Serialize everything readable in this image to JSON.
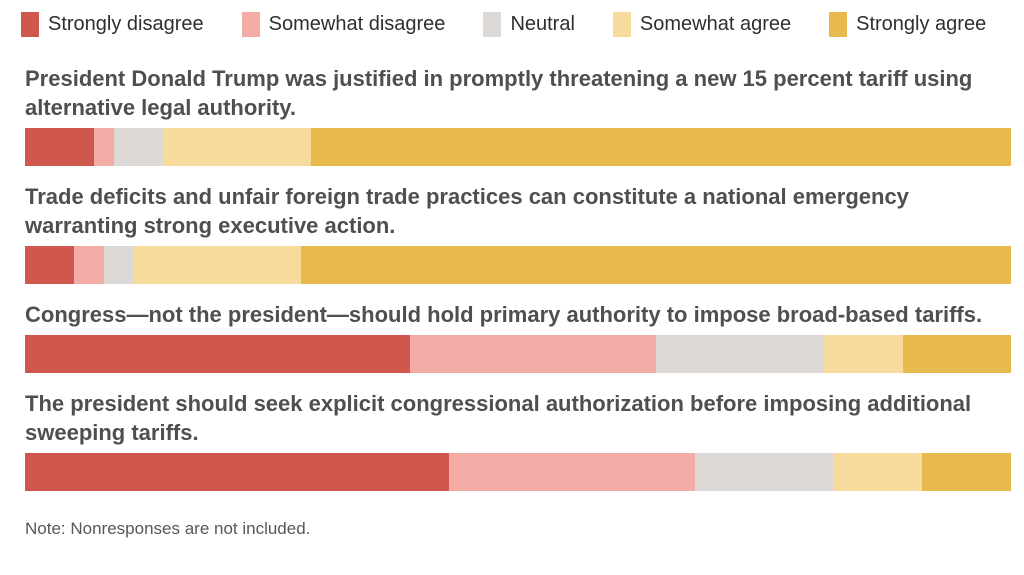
{
  "chart_data": {
    "type": "bar",
    "subtype": "horizontal-stacked-likert",
    "title": "",
    "legend_position": "top",
    "legend": [
      "Strongly disagree",
      "Somewhat disagree",
      "Neutral",
      "Somewhat agree",
      "Strongly agree"
    ],
    "series_colors": [
      "#d0574e",
      "#f2aba5",
      "#dcd9d6",
      "#f6db9d",
      "#e8ba4d"
    ],
    "unit": "percent",
    "xlim": [
      0,
      100
    ],
    "questions": [
      {
        "label": "President Donald Trump was justified in promptly threatening a new 15 percent tariff using alternative legal authority.",
        "values": [
          7,
          2,
          5,
          15,
          71
        ]
      },
      {
        "label": "Trade deficits and unfair foreign trade practices can constitute a national emergency warranting strong executive action.",
        "values": [
          5,
          3,
          3,
          17,
          72
        ]
      },
      {
        "label": "Congress—not the president—should hold primary authority to impose broad-based tariffs.",
        "values": [
          39,
          25,
          17,
          8,
          11
        ]
      },
      {
        "label": "The president should seek explicit congressional authorization before imposing additional sweeping tariffs.",
        "values": [
          43,
          25,
          14,
          9,
          9
        ]
      }
    ],
    "note": "Note: Nonresponses are not included."
  }
}
